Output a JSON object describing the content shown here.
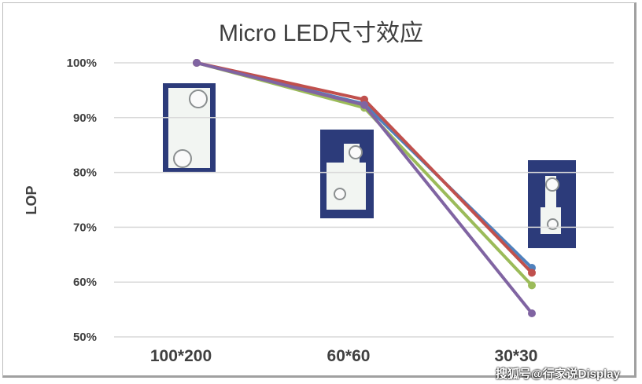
{
  "chart_data": {
    "type": "line",
    "title": "Micro LED尺寸效应",
    "xlabel": "",
    "ylabel": "LOP",
    "categories": [
      "100*200",
      "60*60",
      "30*30"
    ],
    "ylim": [
      50,
      100
    ],
    "yticks": [
      "50%",
      "60%",
      "70%",
      "80%",
      "90%",
      "100%"
    ],
    "yticks_values": [
      50,
      60,
      70,
      80,
      90,
      100
    ],
    "grid": true,
    "series": [
      {
        "name": "blue",
        "color": "#4f81bd",
        "values": [
          100,
          92.5,
          62.6
        ]
      },
      {
        "name": "green",
        "color": "#9bbb59",
        "values": [
          100,
          91.8,
          59.4
        ]
      },
      {
        "name": "red",
        "color": "#c0504d",
        "values": [
          100,
          93.3,
          61.7
        ]
      },
      {
        "name": "purple",
        "color": "#8064a2",
        "values": [
          100,
          92.3,
          54.3
        ]
      }
    ]
  },
  "watermark": "搜狐号@行家说Display"
}
